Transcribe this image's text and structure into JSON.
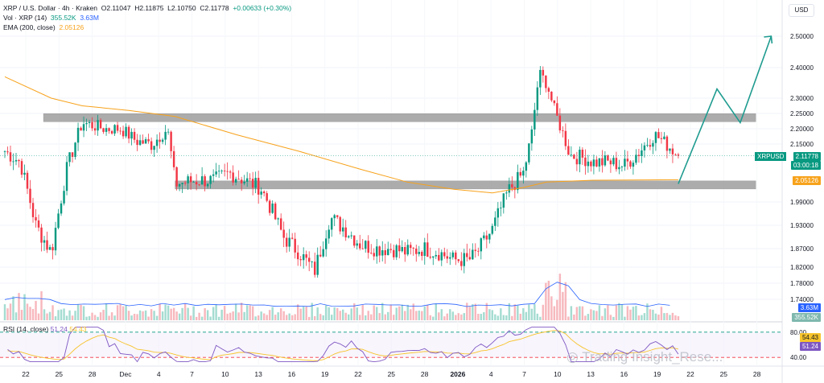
{
  "legend": {
    "symbol": "XRP / U.S. Dollar · 4h · Kraken",
    "open": "O2.11047",
    "high": "H2.11875",
    "low": "L2.10750",
    "close": "C2.11778",
    "change": "+0.00633 (+0.30%)",
    "vol_label": "Vol · XRP (14)",
    "vol_value": "355.52K",
    "vol_ma": "3.63M",
    "ema_label": "EMA (200, close)",
    "ema_value": "2.05126"
  },
  "rsi_legend": {
    "label": "RSI (14, close)",
    "rsi": "51.24",
    "ma": "54.43"
  },
  "currency": "USD",
  "watermark": "Trading Insight_Rese...",
  "price_tags": {
    "symbol": "XRPUSD",
    "last": "2.11778",
    "countdown": "03:00:18",
    "ema": "2.05126",
    "vol_ma": "3.63M",
    "vol": "355.52K",
    "rsi_ma": "54.43",
    "rsi": "51.24"
  },
  "colors": {
    "up": "#089981",
    "down": "#f23645",
    "ema": "#f7a21b",
    "rsi": "#7e57c2",
    "rsi_ma": "#f7c42b",
    "vol_ma": "#2962ff",
    "zone": "#9e9e9e",
    "projection": "#1e9b8f"
  },
  "chart_data": {
    "type": "candlestick",
    "timeframe": "4h",
    "price_axis": {
      "ticks": [
        2.5,
        2.4,
        2.3,
        2.25,
        2.2,
        2.15,
        1.99,
        1.93,
        1.87,
        1.82,
        1.78,
        1.74
      ],
      "tick_labels": [
        "2.50000",
        "2.40000",
        "2.30000",
        "2.25000",
        "2.20000",
        "2.15000",
        "1.99000",
        "1.93000",
        "1.87000",
        "1.82000",
        "1.78000",
        "1.74000"
      ]
    },
    "x_axis": {
      "labels": [
        "22",
        "25",
        "28",
        "Dec",
        "4",
        "7",
        "10",
        "13",
        "16",
        "19",
        "22",
        "25",
        "28",
        "2026",
        "4",
        "7",
        "10",
        "13",
        "16",
        "19",
        "22",
        "25",
        "28"
      ]
    },
    "anchor_path": [
      [
        0,
        2.13
      ],
      [
        2,
        2.1
      ],
      [
        4,
        1.93
      ],
      [
        6,
        1.86
      ],
      [
        8,
        2.08
      ],
      [
        10,
        2.22
      ],
      [
        13,
        2.2
      ],
      [
        15,
        2.2
      ],
      [
        17,
        2.16
      ],
      [
        19,
        2.15
      ],
      [
        21,
        2.2
      ],
      [
        22,
        2.04
      ],
      [
        25,
        2.05
      ],
      [
        27,
        2.05
      ],
      [
        29,
        2.07
      ],
      [
        31,
        2.05
      ],
      [
        33,
        2.03
      ],
      [
        34,
        1.99
      ],
      [
        36,
        1.9
      ],
      [
        38,
        1.86
      ],
      [
        40,
        1.81
      ],
      [
        42,
        1.95
      ],
      [
        44,
        1.92
      ],
      [
        46,
        1.88
      ],
      [
        48,
        1.87
      ],
      [
        50,
        1.87
      ],
      [
        52,
        1.86
      ],
      [
        54,
        1.87
      ],
      [
        56,
        1.86
      ],
      [
        58,
        1.84
      ],
      [
        60,
        1.84
      ],
      [
        61,
        1.86
      ],
      [
        63,
        1.92
      ],
      [
        65,
        2.02
      ],
      [
        67,
        2.07
      ],
      [
        68,
        2.17
      ],
      [
        69,
        2.38
      ],
      [
        70,
        2.35
      ],
      [
        71,
        2.26
      ],
      [
        73,
        2.12
      ],
      [
        75,
        2.11
      ],
      [
        76,
        2.1
      ],
      [
        78,
        2.1
      ],
      [
        80,
        2.09
      ],
      [
        82,
        2.13
      ],
      [
        84,
        2.18
      ],
      [
        86,
        2.14
      ],
      [
        87,
        2.118
      ]
    ],
    "last_price": 2.11778,
    "ema200": {
      "name": "EMA (200, close)",
      "points": [
        [
          0,
          2.37
        ],
        [
          6,
          2.3
        ],
        [
          10,
          2.275
        ],
        [
          16,
          2.26
        ],
        [
          22,
          2.24
        ],
        [
          30,
          2.18
        ],
        [
          38,
          2.13
        ],
        [
          46,
          2.08
        ],
        [
          52,
          2.045
        ],
        [
          58,
          2.025
        ],
        [
          63,
          2.015
        ],
        [
          67,
          2.03
        ],
        [
          70,
          2.045
        ],
        [
          76,
          2.05
        ],
        [
          87,
          2.05126
        ]
      ]
    },
    "zones": [
      {
        "from": 2.234,
        "to": 2.248,
        "x_start": 5,
        "x_end": 100
      },
      {
        "from": 2.032,
        "to": 2.047,
        "x_start": 22,
        "x_end": 100
      }
    ],
    "projection": [
      [
        87,
        2.04
      ],
      [
        92,
        2.33
      ],
      [
        95,
        2.22
      ],
      [
        99,
        2.5
      ]
    ],
    "volume_ma": {
      "name": "Vol · XRP (14)",
      "last": "3.63M"
    },
    "rsi": {
      "overbought": 80,
      "middle": 50,
      "oversold": 40,
      "last": 51.24,
      "ma_last": 54.43,
      "tick_labels": [
        "80.00",
        "40.00"
      ]
    }
  }
}
